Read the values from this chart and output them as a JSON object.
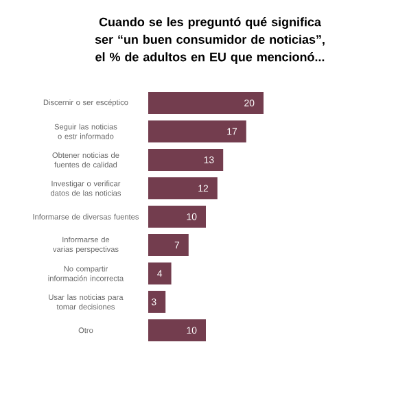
{
  "chart_data": {
    "type": "bar",
    "orientation": "horizontal",
    "title": "Cuando se les preguntó qué significa ser “un buen consumidor de noticias”, el % de adultos en EU que mencionó...",
    "categories": [
      "Discernir o ser escéptico",
      "Seguir las noticias o estr informado",
      "Obtener noticias de fuentes de calidad",
      "Investigar o verificar datos de las noticias",
      "Informarse de diversas fuentes",
      "Informarse de varias perspectivas",
      "No compartir información incorrecta",
      "Usar las noticias para tomar decisiones",
      "Otro"
    ],
    "values": [
      20,
      17,
      13,
      12,
      10,
      7,
      4,
      3,
      10
    ],
    "color": "#733d4e",
    "data_labels": true,
    "tick_labels": "y"
  }
}
